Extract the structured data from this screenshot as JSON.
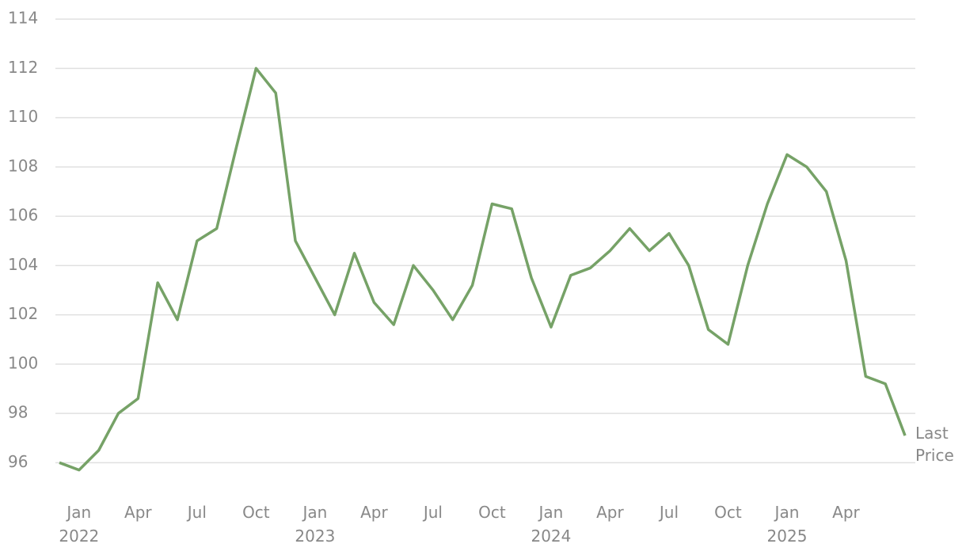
{
  "chart_data": {
    "type": "line",
    "x": [
      "2021-12",
      "2022-01",
      "2022-02",
      "2022-03",
      "2022-04",
      "2022-05",
      "2022-06",
      "2022-07",
      "2022-08",
      "2022-09",
      "2022-10",
      "2022-11",
      "2022-12",
      "2023-01",
      "2023-02",
      "2023-03",
      "2023-04",
      "2023-05",
      "2023-06",
      "2023-07",
      "2023-08",
      "2023-09",
      "2023-10",
      "2023-11",
      "2023-12",
      "2024-01",
      "2024-02",
      "2024-03",
      "2024-04",
      "2024-05",
      "2024-06",
      "2024-07",
      "2024-08",
      "2024-09",
      "2024-10",
      "2024-11",
      "2024-12",
      "2025-01",
      "2025-02",
      "2025-03",
      "2025-04",
      "2025-05",
      "2025-06",
      "2025-07"
    ],
    "series": [
      {
        "color": "#76a267",
        "values": [
          96.0,
          95.7,
          96.5,
          98.0,
          98.6,
          103.3,
          101.8,
          105.0,
          105.5,
          108.8,
          112.0,
          111.0,
          105.0,
          103.5,
          102.0,
          104.5,
          102.5,
          101.6,
          104.0,
          103.0,
          101.8,
          103.2,
          106.5,
          106.3,
          103.5,
          101.5,
          103.6,
          103.9,
          104.6,
          105.5,
          104.6,
          105.3,
          104.0,
          101.4,
          100.8,
          104.0,
          106.5,
          108.5,
          108.0,
          107.0,
          104.2,
          99.5,
          99.2,
          97.1
        ]
      }
    ],
    "annotation": "Last Price",
    "xlim": [
      "2021-12",
      "2025-07"
    ],
    "xticks": [
      {
        "value": "2022-01",
        "label": "Jan 2022"
      },
      {
        "value": "2022-04",
        "label": "Apr"
      },
      {
        "value": "2022-07",
        "label": "Jul"
      },
      {
        "value": "2022-10",
        "label": "Oct"
      },
      {
        "value": "2023-01",
        "label": "Jan 2023"
      },
      {
        "value": "2023-04",
        "label": "Apr"
      },
      {
        "value": "2023-07",
        "label": "Jul"
      },
      {
        "value": "2023-10",
        "label": "Oct"
      },
      {
        "value": "2024-01",
        "label": "Jan 2024"
      },
      {
        "value": "2024-04",
        "label": "Apr"
      },
      {
        "value": "2024-07",
        "label": "Jul"
      },
      {
        "value": "2024-10",
        "label": "Oct"
      },
      {
        "value": "2025-01",
        "label": "Jan 2025"
      },
      {
        "value": "2025-04",
        "label": "Apr"
      }
    ],
    "ylim": [
      94.5,
      114.5
    ],
    "yticks": [
      96,
      98,
      100,
      102,
      104,
      106,
      108,
      110,
      112,
      114
    ],
    "grid": true
  }
}
